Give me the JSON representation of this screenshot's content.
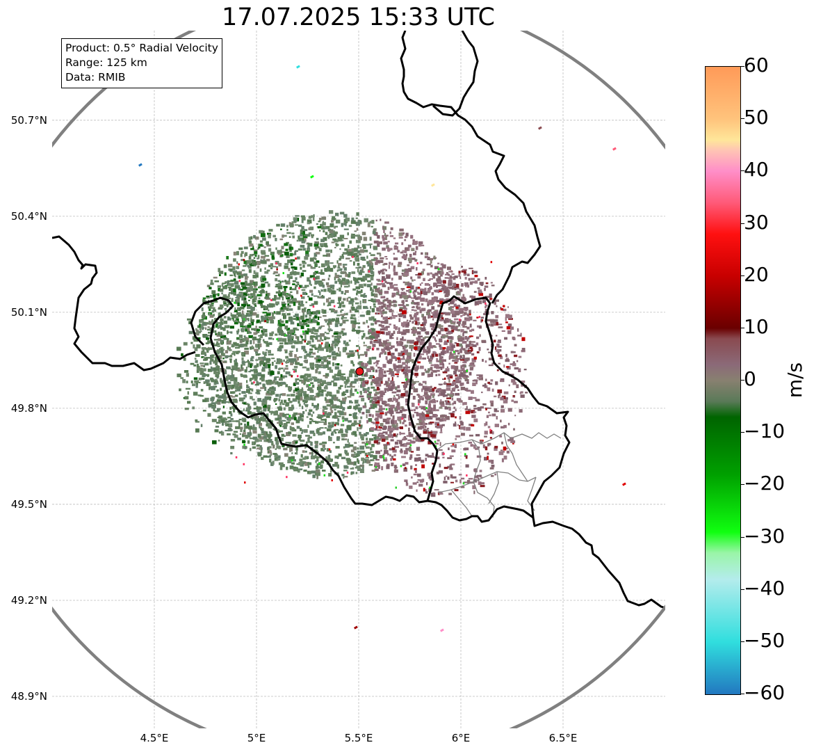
{
  "title": "17.07.2025 15:33 UTC",
  "info_box": {
    "product": "Product: 0.5° Radial Velocity",
    "range": "Range: 125 km",
    "data": "Data: RMIB"
  },
  "map": {
    "extent": {
      "lon_min": 4.0,
      "lon_max": 7.0,
      "lat_min": 48.8,
      "lat_max": 50.98
    },
    "lat_ticks": [
      {
        "value": 50.7,
        "label": "50.7°N"
      },
      {
        "value": 50.4,
        "label": "50.4°N"
      },
      {
        "value": 50.1,
        "label": "50.1°N"
      },
      {
        "value": 49.8,
        "label": "49.8°N"
      },
      {
        "value": 49.5,
        "label": "49.5°N"
      },
      {
        "value": 49.2,
        "label": "49.2°N"
      },
      {
        "value": 48.9,
        "label": "48.9°N"
      }
    ],
    "lon_ticks": [
      {
        "value": 4.5,
        "label": "4.5°E"
      },
      {
        "value": 5.0,
        "label": "5°E"
      },
      {
        "value": 5.5,
        "label": "5.5°E"
      },
      {
        "value": 6.0,
        "label": "6°E"
      },
      {
        "value": 6.5,
        "label": "6.5°E"
      }
    ],
    "radar_site": {
      "lon": 5.505,
      "lat": 49.915,
      "color": "#e41a1c"
    },
    "range_ring_color": "#808080",
    "border_color": "#000000",
    "subregion_border_color": "#808080",
    "grid": true
  },
  "colorbar": {
    "unit": "m/s",
    "min": -60,
    "max": 60,
    "ticks": [
      {
        "value": 60,
        "label": "60"
      },
      {
        "value": 50,
        "label": "50"
      },
      {
        "value": 40,
        "label": "40"
      },
      {
        "value": 30,
        "label": "30"
      },
      {
        "value": 20,
        "label": "20"
      },
      {
        "value": 10,
        "label": "10"
      },
      {
        "value": 0,
        "label": "0"
      },
      {
        "value": -10,
        "label": "−10"
      },
      {
        "value": -20,
        "label": "−20"
      },
      {
        "value": -30,
        "label": "−30"
      },
      {
        "value": -40,
        "label": "−40"
      },
      {
        "value": -50,
        "label": "−50"
      },
      {
        "value": -60,
        "label": "−60"
      }
    ],
    "gradient": [
      {
        "value": 60,
        "color": "#ff9a58"
      },
      {
        "value": 50,
        "color": "#ffc37c"
      },
      {
        "value": 46,
        "color": "#ffe69a"
      },
      {
        "value": 44,
        "color": "#ffc4b4"
      },
      {
        "value": 40,
        "color": "#ff8ec8"
      },
      {
        "value": 34,
        "color": "#ff5a78"
      },
      {
        "value": 28,
        "color": "#ff1010"
      },
      {
        "value": 20,
        "color": "#c80000"
      },
      {
        "value": 10,
        "color": "#6a0000"
      },
      {
        "value": 8,
        "color": "#8a4a50"
      },
      {
        "value": 3,
        "color": "#8b6a78"
      },
      {
        "value": 0,
        "color": "#888070"
      },
      {
        "value": -4,
        "color": "#5a7a58"
      },
      {
        "value": -7,
        "color": "#006400"
      },
      {
        "value": -18,
        "color": "#00a000"
      },
      {
        "value": -29,
        "color": "#10ff10"
      },
      {
        "value": -33,
        "color": "#9af5a8"
      },
      {
        "value": -38,
        "color": "#b4ecec"
      },
      {
        "value": -50,
        "color": "#30dede"
      },
      {
        "value": -60,
        "color": "#2278c0"
      }
    ]
  }
}
